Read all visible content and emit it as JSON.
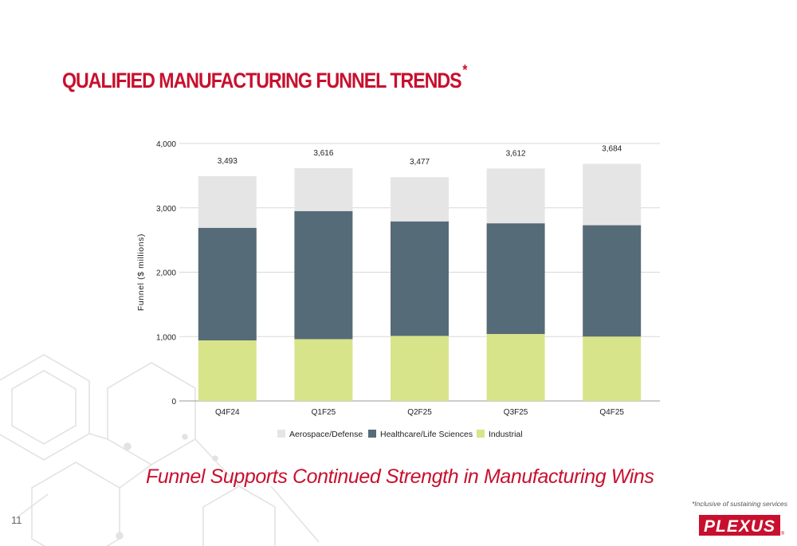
{
  "slide": {
    "title": "QUALIFIED MANUFACTURING FUNNEL TRENDS",
    "title_mark": "*",
    "subtitle": "Funnel Supports Continued Strength in Manufacturing Wins",
    "footnote": "*Inclusive of sustaining services",
    "page_number": "11",
    "logo_text": "PLEXUS"
  },
  "chart_data": {
    "type": "bar",
    "stacked": true,
    "title": "",
    "xlabel": "",
    "ylabel": "Funnel ($ millions)",
    "ylim": [
      0,
      4000
    ],
    "yticks": [
      0,
      1000,
      2000,
      3000,
      4000
    ],
    "ytick_labels": [
      "0",
      "1,000",
      "2,000",
      "3,000",
      "4,000"
    ],
    "grid": "horizontal",
    "legend_position": "bottom",
    "categories": [
      "Q4F24",
      "Q1F25",
      "Q2F25",
      "Q3F25",
      "Q4F25"
    ],
    "series": [
      {
        "name": "Industrial",
        "color": "#d8e48a",
        "values": [
          940,
          960,
          1010,
          1040,
          1000
        ]
      },
      {
        "name": "Healthcare/Life Sciences",
        "color": "#566b78",
        "values": [
          1750,
          1990,
          1780,
          1720,
          1730
        ]
      },
      {
        "name": "Aerospace/Defense",
        "color": "#e6e5e6",
        "values": [
          803,
          666,
          687,
          852,
          954
        ]
      }
    ],
    "legend_order": [
      "Aerospace/Defense",
      "Healthcare/Life Sciences",
      "Industrial"
    ],
    "totals": [
      3493,
      3616,
      3477,
      3612,
      3684
    ],
    "total_labels": [
      "3,493",
      "3,616",
      "3,477",
      "3,612",
      "3,684"
    ]
  },
  "colors": {
    "brand_red": "#c8102e",
    "axis_text": "#222222",
    "grid": "#d9d9d9"
  }
}
